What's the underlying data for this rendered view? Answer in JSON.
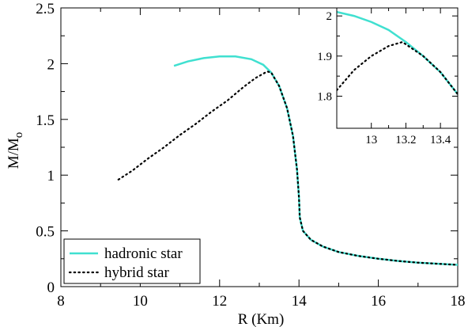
{
  "chart_data": [
    {
      "type": "line",
      "title": "",
      "xlabel": "R (Km)",
      "ylabel_main": "M/M",
      "ylabel_sub": "o",
      "xlim": [
        8,
        18
      ],
      "ylim": [
        0,
        2.5
      ],
      "xticks": [
        8,
        10,
        12,
        14,
        16,
        18
      ],
      "yticks": [
        0,
        0.5,
        1,
        1.5,
        2,
        2.5
      ],
      "xtick_labels": [
        "8",
        "10",
        "12",
        "14",
        "16",
        "18"
      ],
      "ytick_labels": [
        "0",
        "0.5",
        "1",
        "1.5",
        "2",
        "2.5"
      ],
      "grid": false,
      "legend_position": "bottom-left",
      "series": [
        {
          "name": "hadronic star",
          "color": "#40e0d0",
          "style": "solid",
          "points": [
            [
              10.85,
              1.98
            ],
            [
              11.2,
              2.02
            ],
            [
              11.6,
              2.05
            ],
            [
              12.0,
              2.065
            ],
            [
              12.4,
              2.065
            ],
            [
              12.8,
              2.04
            ],
            [
              13.1,
              1.99
            ],
            [
              13.3,
              1.92
            ],
            [
              13.5,
              1.8
            ],
            [
              13.7,
              1.6
            ],
            [
              13.85,
              1.35
            ],
            [
              13.95,
              1.05
            ],
            [
              14.0,
              0.8
            ],
            [
              14.02,
              0.62
            ],
            [
              14.1,
              0.5
            ],
            [
              14.3,
              0.42
            ],
            [
              14.6,
              0.36
            ],
            [
              15.0,
              0.31
            ],
            [
              15.5,
              0.275
            ],
            [
              16.0,
              0.25
            ],
            [
              16.5,
              0.23
            ],
            [
              17.0,
              0.215
            ],
            [
              17.5,
              0.205
            ],
            [
              18.0,
              0.195
            ]
          ]
        },
        {
          "name": "hybrid star",
          "color": "#000000",
          "style": "dotted",
          "points": [
            [
              9.45,
              0.96
            ],
            [
              9.8,
              1.04
            ],
            [
              10.2,
              1.15
            ],
            [
              10.6,
              1.25
            ],
            [
              11.0,
              1.36
            ],
            [
              11.4,
              1.46
            ],
            [
              11.8,
              1.57
            ],
            [
              12.2,
              1.67
            ],
            [
              12.6,
              1.79
            ],
            [
              12.9,
              1.87
            ],
            [
              13.2,
              1.93
            ],
            [
              13.3,
              1.92
            ],
            [
              13.5,
              1.8
            ],
            [
              13.7,
              1.6
            ],
            [
              13.85,
              1.35
            ],
            [
              13.95,
              1.05
            ],
            [
              14.0,
              0.8
            ],
            [
              14.02,
              0.62
            ],
            [
              14.1,
              0.5
            ],
            [
              14.3,
              0.42
            ],
            [
              14.6,
              0.36
            ],
            [
              15.0,
              0.31
            ],
            [
              15.5,
              0.275
            ],
            [
              16.0,
              0.25
            ],
            [
              16.5,
              0.23
            ],
            [
              17.0,
              0.215
            ],
            [
              17.5,
              0.205
            ],
            [
              18.0,
              0.195
            ]
          ]
        }
      ]
    },
    {
      "type": "line",
      "title": "",
      "xlabel": "",
      "ylabel": "",
      "xlim": [
        12.8,
        13.5
      ],
      "ylim": [
        1.72,
        2.02
      ],
      "xticks": [
        13.0,
        13.2,
        13.4
      ],
      "yticks": [
        1.8,
        1.9,
        2.0
      ],
      "xtick_labels": [
        "13",
        "13.2",
        "13.4"
      ],
      "ytick_labels": [
        "1.8",
        "1.9",
        "2"
      ],
      "grid": false,
      "series": [
        {
          "name": "hadronic star",
          "color": "#40e0d0",
          "style": "solid",
          "points": [
            [
              12.8,
              2.01
            ],
            [
              12.9,
              2.0
            ],
            [
              13.0,
              1.985
            ],
            [
              13.1,
              1.965
            ],
            [
              13.2,
              1.935
            ],
            [
              13.3,
              1.9
            ],
            [
              13.4,
              1.86
            ],
            [
              13.5,
              1.805
            ]
          ]
        },
        {
          "name": "hybrid star",
          "color": "#000000",
          "style": "dotted",
          "points": [
            [
              12.8,
              1.815
            ],
            [
              12.9,
              1.865
            ],
            [
              13.0,
              1.9
            ],
            [
              13.1,
              1.925
            ],
            [
              13.18,
              1.935
            ],
            [
              13.3,
              1.9
            ],
            [
              13.4,
              1.86
            ],
            [
              13.5,
              1.805
            ]
          ]
        }
      ]
    }
  ]
}
